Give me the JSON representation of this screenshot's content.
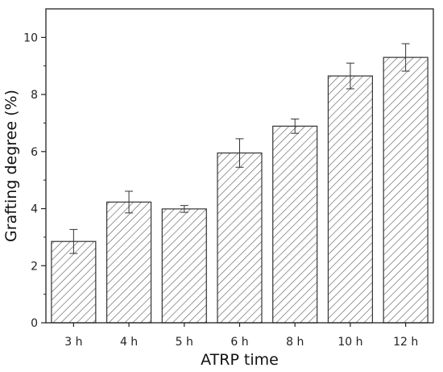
{
  "chart_data": {
    "type": "bar",
    "title": "",
    "xlabel": "ATRP time",
    "ylabel": "Grafting degree (%)",
    "categories": [
      "3 h",
      "4 h",
      "5 h",
      "6 h",
      "8 h",
      "10 h",
      "12 h"
    ],
    "values": [
      2.85,
      4.23,
      3.99,
      5.95,
      6.89,
      8.65,
      9.3
    ],
    "error": [
      0.42,
      0.38,
      0.12,
      0.5,
      0.25,
      0.45,
      0.48
    ],
    "ylim": [
      0,
      11
    ],
    "yticks": [
      0,
      2,
      4,
      6,
      8,
      10
    ],
    "ytick_labels": [
      "0",
      "2",
      "4",
      "6",
      "8",
      "10"
    ],
    "grid": false,
    "bar_fill": "hatched",
    "colors": {
      "bar_stroke": "#333333",
      "hatch": "#555555",
      "axis": "#222222"
    }
  }
}
